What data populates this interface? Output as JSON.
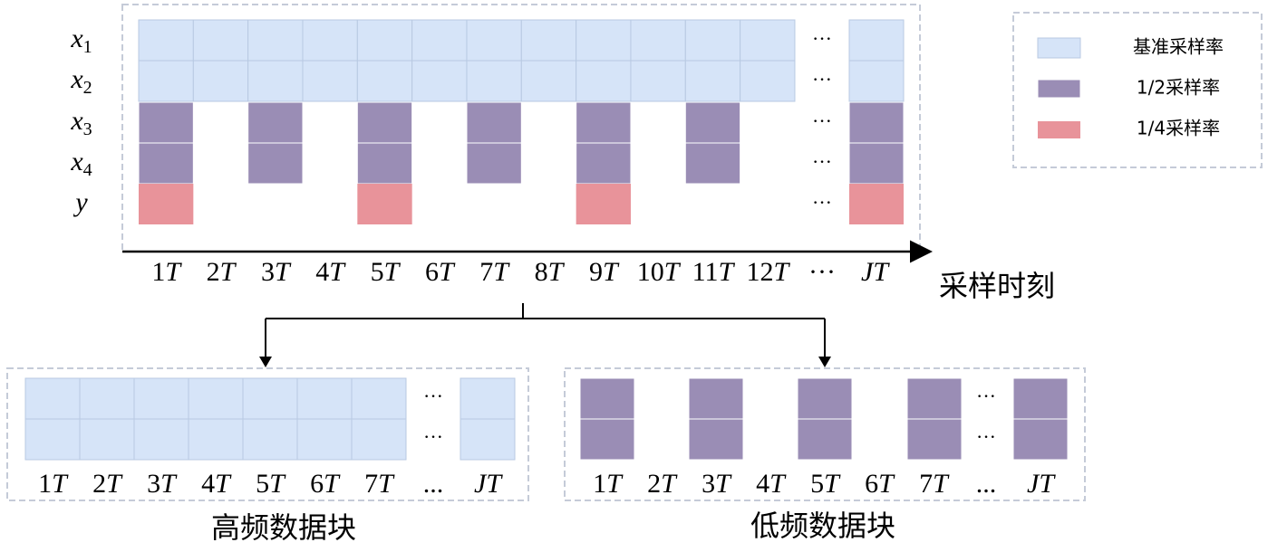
{
  "rows": [
    {
      "v": "x",
      "sub": "1"
    },
    {
      "v": "x",
      "sub": "2"
    },
    {
      "v": "x",
      "sub": "3"
    },
    {
      "v": "x",
      "sub": "4"
    },
    {
      "v": "y"
    }
  ],
  "row_dots": [
    "···",
    "···",
    "···",
    "···",
    "···"
  ],
  "top_axis": {
    "labels": [
      {
        "n": "1",
        "u": "T"
      },
      {
        "n": "2",
        "u": "T"
      },
      {
        "n": "3",
        "u": "T"
      },
      {
        "n": "4",
        "u": "T"
      },
      {
        "n": "5",
        "u": "T"
      },
      {
        "n": "6",
        "u": "T"
      },
      {
        "n": "7",
        "u": "T"
      },
      {
        "n": "8",
        "u": "T"
      },
      {
        "n": "9",
        "u": "T"
      },
      {
        "n": "10",
        "u": "T"
      },
      {
        "n": "11",
        "u": "T"
      },
      {
        "n": "12",
        "u": "T"
      },
      {
        "text": "···"
      },
      {
        "u": "JT"
      }
    ],
    "title": "采样时刻"
  },
  "legend": [
    "基准采样率",
    "1/2采样率",
    "1/4采样率"
  ],
  "high_block": {
    "dots": [
      "···",
      "···"
    ],
    "labels": [
      {
        "n": "1",
        "u": "T"
      },
      {
        "n": "2",
        "u": "T"
      },
      {
        "n": "3",
        "u": "T"
      },
      {
        "n": "4",
        "u": "T"
      },
      {
        "n": "5",
        "u": "T"
      },
      {
        "n": "6",
        "u": "T"
      },
      {
        "n": "7",
        "u": "T"
      },
      {
        "text": "..."
      },
      {
        "u": "JT"
      }
    ],
    "caption": "高频数据块"
  },
  "low_block": {
    "dots": [
      "···",
      "···"
    ],
    "labels": [
      {
        "n": "1",
        "u": "T"
      },
      {
        "n": "2",
        "u": "T"
      },
      {
        "n": "3",
        "u": "T"
      },
      {
        "n": "4",
        "u": "T"
      },
      {
        "n": "5",
        "u": "T"
      },
      {
        "n": "6",
        "u": "T"
      },
      {
        "n": "7",
        "u": "T"
      },
      {
        "text": "..."
      },
      {
        "u": "JT"
      }
    ],
    "caption": "低频数据块"
  }
}
